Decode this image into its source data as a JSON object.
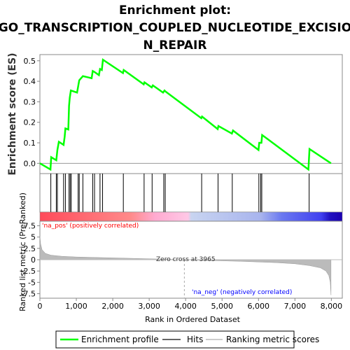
{
  "title_line1": "Enrichment plot:",
  "title_line2": "GO_TRANSCRIPTION_COUPLED_NUCLEOTIDE_EXCISIO",
  "title_line3": "N_REPAIR",
  "colors": {
    "enrichment": "#00ff00",
    "hits": "#000000",
    "pos_label": "#ff0000",
    "neg_label": "#0000ff",
    "metric_fill": "#bbbbbb"
  },
  "chart_data": [
    {
      "type": "line",
      "name": "enrichment_profile",
      "ylabel": "Enrichment score (ES)",
      "ylim": [
        -0.05,
        0.53
      ],
      "xlim": [
        0,
        8300
      ],
      "yticks": [
        "0.0",
        "0.1",
        "0.2",
        "0.3",
        "0.4",
        "0.5"
      ],
      "ytick_values": [
        0.0,
        0.1,
        0.2,
        0.3,
        0.4,
        0.5
      ],
      "grid": false,
      "x": [
        0,
        290,
        310,
        450,
        480,
        520,
        650,
        680,
        700,
        780,
        800,
        820,
        850,
        1020,
        1050,
        1080,
        1180,
        1420,
        1450,
        1500,
        1620,
        1650,
        1700,
        1730,
        2280,
        2300,
        2850,
        2870,
        3070,
        3100,
        3380,
        3420,
        3450,
        4430,
        4450,
        4880,
        4900,
        5270,
        5300,
        6000,
        6020,
        6080,
        6100,
        7370,
        7400,
        7990
      ],
      "y": [
        0.0,
        -0.03,
        0.03,
        0.015,
        0.065,
        0.105,
        0.09,
        0.13,
        0.17,
        0.165,
        0.28,
        0.32,
        0.355,
        0.345,
        0.375,
        0.405,
        0.425,
        0.415,
        0.45,
        0.445,
        0.43,
        0.46,
        0.455,
        0.505,
        0.44,
        0.455,
        0.385,
        0.395,
        0.37,
        0.38,
        0.345,
        0.355,
        0.35,
        0.22,
        0.228,
        0.167,
        0.182,
        0.145,
        0.16,
        0.065,
        0.1,
        0.1,
        0.138,
        -0.03,
        0.07,
        0.0
      ]
    },
    {
      "type": "scatter",
      "name": "hits",
      "x": [
        300,
        450,
        480,
        650,
        700,
        800,
        830,
        860,
        1050,
        1080,
        1180,
        1450,
        1500,
        1650,
        1720,
        2290,
        2860,
        3080,
        3400,
        3440,
        4440,
        4890,
        5280,
        6010,
        6060,
        6090,
        7390
      ]
    },
    {
      "type": "area",
      "name": "ranked_list_metric",
      "ylabel": "Ranked list metric (PreRanked)",
      "xlabel": "Rank in Ordered Dataset",
      "ylim": [
        -8.5,
        8.5
      ],
      "xlim": [
        0,
        8300
      ],
      "yticks": [
        "-7.5",
        "-5",
        "-2.5",
        "0",
        "2.5",
        "5",
        "7.5"
      ],
      "ytick_values": [
        -7.5,
        -5,
        -2.5,
        0,
        2.5,
        5,
        7.5
      ],
      "xticks": [
        "0",
        "1,000",
        "2,000",
        "3,000",
        "4,000",
        "5,000",
        "6,000",
        "7,000",
        "8,000"
      ],
      "xtick_values": [
        0,
        1000,
        2000,
        3000,
        4000,
        5000,
        6000,
        7000,
        8000
      ],
      "x": [
        0,
        20,
        60,
        150,
        300,
        600,
        1000,
        2000,
        3000,
        3965,
        4500,
        5500,
        6500,
        7000,
        7400,
        7700,
        7850,
        7930,
        7970,
        7990
      ],
      "y": [
        5.2,
        3.5,
        2.2,
        1.4,
        1.0,
        0.75,
        0.6,
        0.4,
        0.2,
        0.0,
        -0.15,
        -0.35,
        -0.65,
        -0.9,
        -1.3,
        -1.8,
        -2.5,
        -3.5,
        -5.0,
        -7.8
      ],
      "annotations": {
        "pos": "'na_pos' (positively correlated)",
        "neg": "'na_neg' (negatively correlated)",
        "zero": "Zero cross at 3965"
      },
      "zero_cross": 3965
    }
  ],
  "legend": {
    "items": [
      {
        "label": "Enrichment profile",
        "color": "#00ff00"
      },
      {
        "label": "Hits",
        "color": "#666666"
      },
      {
        "label": "Ranking metric scores",
        "color": "#cccccc"
      }
    ]
  }
}
